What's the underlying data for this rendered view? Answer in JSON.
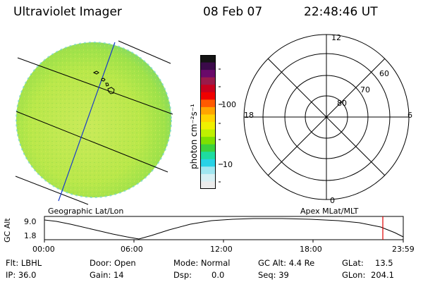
{
  "header": {
    "title": "Ultraviolet Imager",
    "date": "08 Feb 07",
    "time": "22:48:46 UT"
  },
  "colorbar": {
    "label": "photon cm⁻²s⁻¹",
    "ticks": [
      "100",
      "10"
    ],
    "colors": [
      "#141414",
      "#3b0a4a",
      "#6a0a6a",
      "#9a1a4a",
      "#c8001e",
      "#f00000",
      "#ff5a00",
      "#ffa500",
      "#ffd400",
      "#f0f000",
      "#bff000",
      "#7ee000",
      "#3cd23c",
      "#1edca0",
      "#28d2e6",
      "#a0e6f0",
      "#d8f0f4",
      "#ececec"
    ]
  },
  "polar": {
    "top_label": "12",
    "left_label": "18",
    "right_label": "6",
    "bottom_label": "0",
    "ring_labels": [
      "60",
      "70",
      "80"
    ]
  },
  "map": {
    "left_caption": "Geographic Lat/Lon",
    "right_caption": "Apex MLat/MLT"
  },
  "orbit": {
    "axis_label": "GC Alt",
    "y_ticks": [
      "9.0",
      "1.8"
    ],
    "x_ticks": [
      "00:00",
      "06:00",
      "12:00",
      "18:00",
      "23:59"
    ]
  },
  "status": {
    "flt": "Flt: LBHL",
    "ip": "IP: 36.0",
    "door": "Door: Open",
    "gain": "Gain: 14",
    "mode": "Mode: Normal",
    "dsp_label": "Dsp:",
    "dsp_value": "0.0",
    "gc_alt": "GC Alt: 4.4 Re",
    "seq": "Seq: 39",
    "glat_label": "GLat:",
    "glat_value": "13.5",
    "glon_label": "GLon:",
    "glon_value": "204.1"
  }
}
